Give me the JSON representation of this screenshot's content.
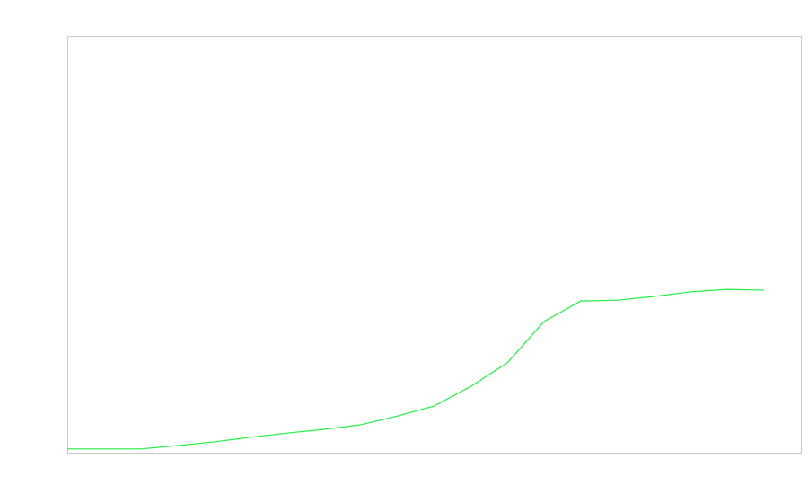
{
  "chart_data": {
    "type": "line",
    "x": [
      0,
      1,
      2,
      3,
      4,
      5,
      6,
      7,
      8,
      9,
      10,
      11,
      12,
      13,
      14,
      15,
      16,
      17,
      18,
      19
    ],
    "series": [
      {
        "color": "#22ee44",
        "values": [
          0.9,
          0.9,
          0.9,
          1.7,
          2.6,
          3.7,
          4.7,
          5.6,
          6.7,
          8.8,
          11.2,
          15.9,
          21.6,
          31.5,
          36.4,
          36.6,
          37.5,
          38.6,
          39.2,
          39.0
        ]
      }
    ],
    "xlim": [
      0,
      20
    ],
    "ylim": [
      0,
      100
    ]
  }
}
